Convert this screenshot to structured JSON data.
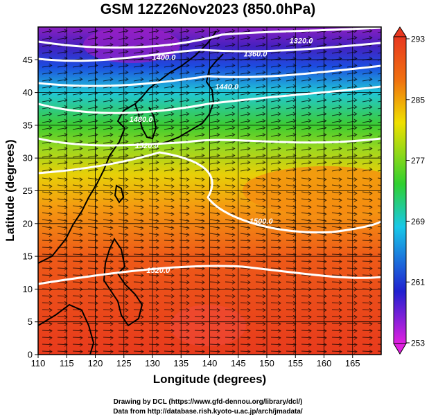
{
  "title": "GSM 12Z26Nov2023 (850.0hPa)",
  "map": {
    "xlabel": "Longitude (degrees)",
    "ylabel": "Latitude  (degrees)",
    "lon_ticks": [
      "110",
      "115",
      "120",
      "125",
      "130",
      "135",
      "140",
      "145",
      "150",
      "155",
      "160",
      "165"
    ],
    "lat_ticks": [
      "0",
      "5",
      "10",
      "15",
      "20",
      "25",
      "30",
      "35",
      "40",
      "45"
    ],
    "lon_range": [
      110,
      170
    ],
    "lat_range": [
      0,
      50
    ],
    "height_contours": [
      {
        "label": "1320.0",
        "label_lon": 156,
        "label_lat": 47.5
      },
      {
        "label": "1360.0",
        "label_lon": 148,
        "label_lat": 45.5
      },
      {
        "label": "1400.0",
        "label_lon": 132,
        "label_lat": 45.0
      },
      {
        "label": "1440.0",
        "label_lon": 143,
        "label_lat": 40.5
      },
      {
        "label": "1480.0",
        "label_lon": 128,
        "label_lat": 35.5
      },
      {
        "label": "1520.0",
        "label_lon": 129,
        "label_lat": 31.5
      },
      {
        "label": "1500.0",
        "label_lon": 149,
        "label_lat": 20.0
      },
      {
        "label": "1520.0",
        "label_lon": 131,
        "label_lat": 12.5
      }
    ]
  },
  "colorbar": {
    "ticks": [
      "253",
      "261",
      "269",
      "277",
      "285",
      "293"
    ],
    "colors": [
      "#e020e0",
      "#2020d0",
      "#18c8e8",
      "#30d030",
      "#f0e000",
      "#f07010",
      "#e83820"
    ]
  },
  "credits": {
    "line1": "Drawing by DCL (https://www.gfd-dennou.org/library/dcl/)",
    "line2": "Data from http://database.rish.kyoto-u.ac.jp/arch/jmadata/"
  }
}
